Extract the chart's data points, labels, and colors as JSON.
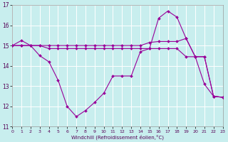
{
  "background_color": "#c8eeee",
  "grid_color": "#ffffff",
  "line_color": "#990099",
  "xlim": [
    0,
    23
  ],
  "ylim": [
    11,
    17
  ],
  "yticks": [
    11,
    12,
    13,
    14,
    15,
    16,
    17
  ],
  "xticks": [
    0,
    1,
    2,
    3,
    4,
    5,
    6,
    7,
    8,
    9,
    10,
    11,
    12,
    13,
    14,
    15,
    16,
    17,
    18,
    19,
    20,
    21,
    22,
    23
  ],
  "xlabel": "Windchill (Refroidissement éolien,°C)",
  "series": [
    [
      15.0,
      15.25,
      15.0,
      14.5,
      14.2,
      13.3,
      12.0,
      11.5,
      11.8,
      12.2,
      12.65,
      13.5,
      13.5,
      13.5,
      14.7,
      14.85,
      16.35,
      16.7,
      16.4,
      15.35,
      14.45,
      13.1,
      12.5,
      12.45
    ],
    [
      15.0,
      15.0,
      15.0,
      15.0,
      15.0,
      15.0,
      15.0,
      15.0,
      15.0,
      15.0,
      15.0,
      15.0,
      15.0,
      15.0,
      15.0,
      15.15,
      15.2,
      15.2,
      15.2,
      15.35,
      14.45,
      14.45,
      12.5,
      12.45
    ],
    [
      15.0,
      15.0,
      15.0,
      15.0,
      14.85,
      14.85,
      14.85,
      14.85,
      14.85,
      14.85,
      14.85,
      14.85,
      14.85,
      14.85,
      14.85,
      14.85,
      14.85,
      14.85,
      14.85,
      14.45,
      14.45,
      14.45,
      12.5,
      12.45
    ]
  ]
}
